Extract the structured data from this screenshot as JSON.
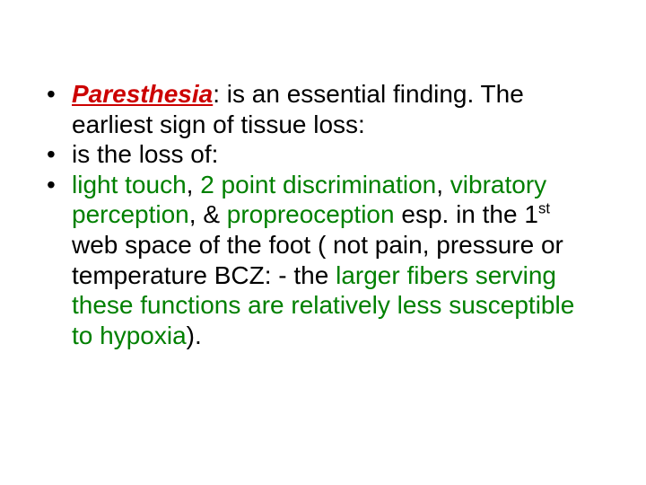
{
  "colors": {
    "background": "#ffffff",
    "text": "#000000",
    "term_red": "#cc0000",
    "highlight_green": "#008000"
  },
  "typography": {
    "font_family": "Arial",
    "font_size_pt": 21,
    "line_height": 1.2
  },
  "bullets": {
    "b1": {
      "term": "Paresthesia",
      "after_term": ": is an essential finding. The earliest sign of tissue loss:"
    },
    "b2": {
      "text_pre": " is the loss of:"
    },
    "b3": {
      "p1": " ",
      "h1": "light touch",
      "p2": ", ",
      "h2": "2 point discrimination",
      "p3": ", ",
      "h3": "vibratory perception",
      "p4": ", & ",
      "h4": "propreoception",
      "p5": " esp. in the 1",
      "sup": "st",
      "p6": " web space of the foot ( not pain, pressure or temperature BCZ: - the ",
      "h5": "larger fibers serving these functions are relatively less susceptible to hypoxia",
      "p7": ")."
    }
  }
}
